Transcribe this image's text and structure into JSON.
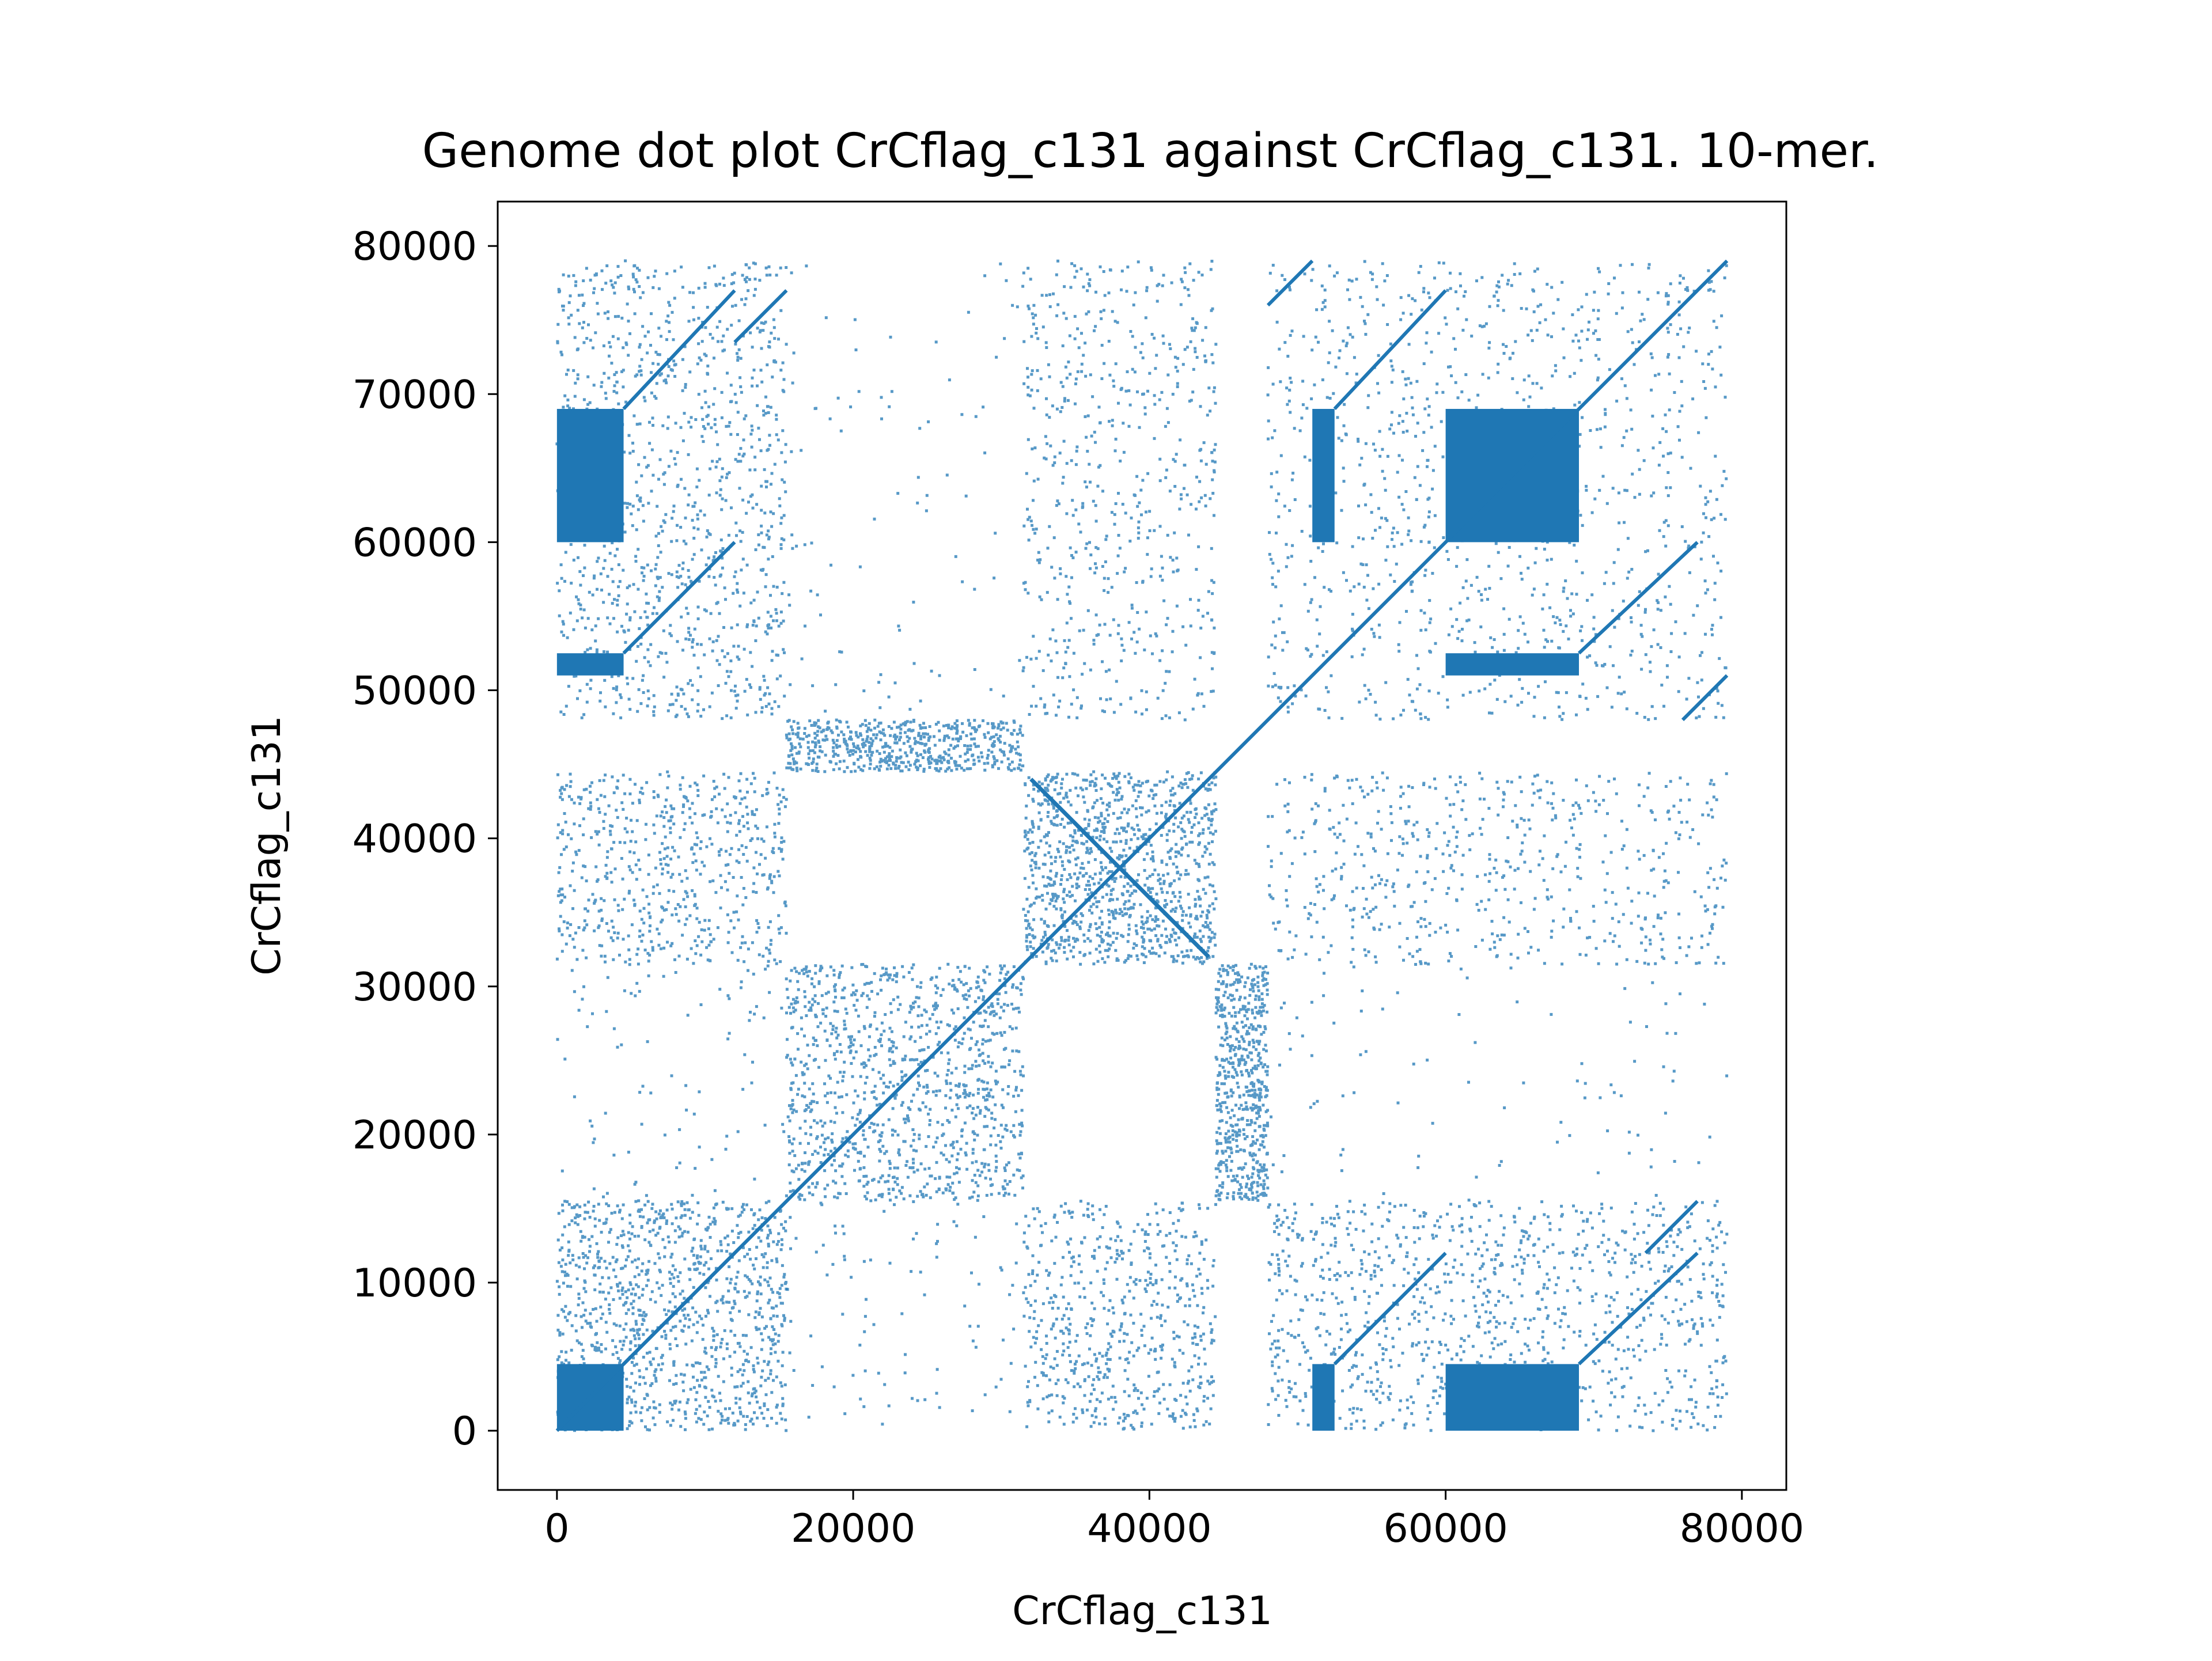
{
  "chart_data": {
    "type": "scatter",
    "title": "Genome dot plot CrCflag_c131 against CrCflag_c131. 10-mer.",
    "xlabel": "CrCflag_c131",
    "ylabel": "CrCflag_c131",
    "xlim": [
      -4000,
      83000
    ],
    "ylim": [
      -4000,
      83000
    ],
    "xticks": [
      0,
      20000,
      40000,
      60000,
      80000
    ],
    "yticks": [
      0,
      10000,
      20000,
      30000,
      40000,
      50000,
      60000,
      70000,
      80000
    ],
    "xtick_labels": [
      "0",
      "20000",
      "40000",
      "60000",
      "80000"
    ],
    "ytick_labels": [
      "0",
      "10000",
      "20000",
      "30000",
      "40000",
      "50000",
      "60000",
      "70000",
      "80000"
    ],
    "grid": false,
    "legend": "none",
    "marker_color": "#1f77b4",
    "sequence_length": 79000,
    "main_diagonal": [
      [
        0,
        0
      ],
      [
        79000,
        79000
      ]
    ],
    "inverted_repeat_diagonal": [
      [
        32000,
        44000
      ],
      [
        44000,
        32000
      ]
    ],
    "dense_blocks": [
      {
        "x": [
          0,
          4500
        ],
        "y": [
          0,
          4500
        ]
      },
      {
        "x": [
          0,
          4500
        ],
        "y": [
          60000,
          69000
        ]
      },
      {
        "x": [
          60000,
          69000
        ],
        "y": [
          0,
          4500
        ]
      },
      {
        "x": [
          60000,
          69000
        ],
        "y": [
          60000,
          69000
        ]
      },
      {
        "x": [
          51000,
          52500
        ],
        "y": [
          0,
          4500
        ]
      },
      {
        "x": [
          51000,
          52500
        ],
        "y": [
          60000,
          69000
        ]
      },
      {
        "x": [
          0,
          4500
        ],
        "y": [
          51000,
          52500
        ]
      },
      {
        "x": [
          60000,
          69000
        ],
        "y": [
          51000,
          52500
        ]
      }
    ],
    "repeat_segments": [
      {
        "x": [
          4500,
          12000
        ],
        "y": [
          4500,
          12000
        ]
      },
      {
        "x": [
          4500,
          12000
        ],
        "y": [
          52500,
          60000
        ]
      },
      {
        "x": [
          52500,
          60000
        ],
        "y": [
          4500,
          12000
        ]
      },
      {
        "x": [
          69000,
          77000
        ],
        "y": [
          4500,
          12000
        ]
      },
      {
        "x": [
          4500,
          12000
        ],
        "y": [
          69000,
          77000
        ]
      },
      {
        "x": [
          69000,
          77000
        ],
        "y": [
          52500,
          60000
        ]
      },
      {
        "x": [
          52500,
          60000
        ],
        "y": [
          69000,
          77000
        ]
      },
      {
        "x": [
          12000,
          15500
        ],
        "y": [
          73500,
          77000
        ]
      },
      {
        "x": [
          73500,
          77000
        ],
        "y": [
          12000,
          15500
        ]
      },
      {
        "x": [
          48000,
          51000
        ],
        "y": [
          76000,
          79000
        ]
      },
      {
        "x": [
          76000,
          79000
        ],
        "y": [
          48000,
          51000
        ]
      }
    ],
    "scatter_regions": [
      {
        "x": [
          0,
          15500
        ],
        "y": [
          0,
          15500
        ],
        "density": "high"
      },
      {
        "x": [
          0,
          15500
        ],
        "y": [
          48000,
          79000
        ],
        "density": "high"
      },
      {
        "x": [
          48000,
          79000
        ],
        "y": [
          0,
          15500
        ],
        "density": "high"
      },
      {
        "x": [
          48000,
          79000
        ],
        "y": [
          48000,
          79000
        ],
        "density": "high"
      },
      {
        "x": [
          15500,
          31500
        ],
        "y": [
          15500,
          31500
        ],
        "density": "high"
      },
      {
        "x": [
          31500,
          44500
        ],
        "y": [
          31500,
          44500
        ],
        "density": "high"
      },
      {
        "x": [
          31500,
          44500
        ],
        "y": [
          0,
          15500
        ],
        "density": "medium"
      },
      {
        "x": [
          31500,
          44500
        ],
        "y": [
          48000,
          79000
        ],
        "density": "medium"
      },
      {
        "x": [
          0,
          15500
        ],
        "y": [
          31500,
          44500
        ],
        "density": "medium"
      },
      {
        "x": [
          48000,
          79000
        ],
        "y": [
          31500,
          44500
        ],
        "density": "medium"
      },
      {
        "x": [
          15500,
          31500
        ],
        "y": [
          44500,
          48000
        ],
        "density": "medium"
      },
      {
        "x": [
          44500,
          48000
        ],
        "y": [
          15500,
          31500
        ],
        "density": "medium"
      },
      {
        "x": [
          15500,
          31500
        ],
        "y": [
          0,
          15500
        ],
        "density": "low"
      },
      {
        "x": [
          15500,
          31500
        ],
        "y": [
          48000,
          79000
        ],
        "density": "low"
      },
      {
        "x": [
          0,
          15500
        ],
        "y": [
          15500,
          31500
        ],
        "density": "low"
      },
      {
        "x": [
          48000,
          79000
        ],
        "y": [
          15500,
          31500
        ],
        "density": "low"
      }
    ]
  }
}
